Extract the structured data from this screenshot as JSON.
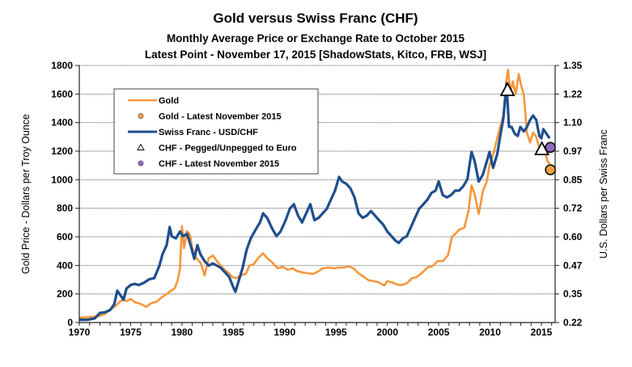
{
  "chart_data": {
    "type": "line",
    "title": "Gold versus Swiss Franc (CHF)",
    "subtitle_1": "Monthly Average Price or Exchange Rate to October 2015",
    "subtitle_2": "Latest Point - November 17, 2015 [ShadowStats, Kitco, FRB, WSJ]",
    "xlabel": "",
    "ylabel_left": "Gold Price - Dollars per Troy Ounce",
    "ylabel_right": "U.S. Dollars per Swiss Franc",
    "xlim": [
      1970,
      2016.3
    ],
    "ylim_left": [
      0,
      1800
    ],
    "ylim_right": [
      0.22,
      1.35
    ],
    "x_ticks": [
      "1970",
      "1975",
      "1980",
      "1985",
      "1990",
      "1995",
      "2000",
      "2005",
      "2010",
      "2015"
    ],
    "y_ticks_left": [
      "0",
      "200",
      "400",
      "600",
      "800",
      "1000",
      "1200",
      "1400",
      "1600",
      "1800"
    ],
    "y_ticks_right": [
      "0.22",
      "0.35",
      "0.47",
      "0.60",
      "0.72",
      "0.85",
      "0.97",
      "1.10",
      "1.22",
      "1.35"
    ],
    "grid": true,
    "legend_position": "top-left",
    "colors": {
      "gold": "#f7963b",
      "chf": "#1f4e8c",
      "gold_dot": "#f4a040",
      "chf_dot": "#8e6bbf",
      "grid": "#555555"
    },
    "legend": [
      {
        "label": "Gold",
        "kind": "line",
        "series": "gold"
      },
      {
        "label": "Gold - Latest November 2015",
        "kind": "dot",
        "series": "gold_dot"
      },
      {
        "label": "Swiss Franc - USD/CHF",
        "kind": "line",
        "series": "chf"
      },
      {
        "label": "CHF - Pegged/Unpegged to Euro",
        "kind": "triangle",
        "series": "peg"
      },
      {
        "label": "CHF - Latest November 2015",
        "kind": "dot",
        "series": "chf_dot"
      }
    ],
    "series": [
      {
        "name": "Gold",
        "axis": "left",
        "points": [
          [
            1970.0,
            35
          ],
          [
            1971.0,
            38
          ],
          [
            1971.8,
            42
          ],
          [
            1972.5,
            60
          ],
          [
            1973.0,
            90
          ],
          [
            1973.5,
            115
          ],
          [
            1974.0,
            150
          ],
          [
            1974.3,
            160
          ],
          [
            1974.6,
            150
          ],
          [
            1975.0,
            165
          ],
          [
            1975.5,
            140
          ],
          [
            1976.0,
            130
          ],
          [
            1976.5,
            110
          ],
          [
            1977.0,
            135
          ],
          [
            1977.5,
            145
          ],
          [
            1978.0,
            175
          ],
          [
            1978.5,
            200
          ],
          [
            1978.9,
            220
          ],
          [
            1979.3,
            240
          ],
          [
            1979.6,
            300
          ],
          [
            1979.8,
            380
          ],
          [
            1980.0,
            675
          ],
          [
            1980.2,
            520
          ],
          [
            1980.5,
            640
          ],
          [
            1980.8,
            610
          ],
          [
            1981.0,
            520
          ],
          [
            1981.4,
            450
          ],
          [
            1981.8,
            420
          ],
          [
            1982.2,
            330
          ],
          [
            1982.6,
            450
          ],
          [
            1983.0,
            470
          ],
          [
            1983.5,
            420
          ],
          [
            1984.0,
            380
          ],
          [
            1984.5,
            350
          ],
          [
            1984.9,
            320
          ],
          [
            1985.3,
            310
          ],
          [
            1985.7,
            330
          ],
          [
            1986.2,
            340
          ],
          [
            1986.6,
            400
          ],
          [
            1987.0,
            410
          ],
          [
            1987.4,
            450
          ],
          [
            1987.9,
            485
          ],
          [
            1988.3,
            450
          ],
          [
            1988.8,
            420
          ],
          [
            1989.3,
            380
          ],
          [
            1989.8,
            390
          ],
          [
            1990.3,
            370
          ],
          [
            1990.8,
            380
          ],
          [
            1991.2,
            360
          ],
          [
            1991.8,
            350
          ],
          [
            1992.3,
            345
          ],
          [
            1992.8,
            340
          ],
          [
            1993.3,
            360
          ],
          [
            1993.7,
            380
          ],
          [
            1994.3,
            385
          ],
          [
            1994.8,
            380
          ],
          [
            1995.3,
            385
          ],
          [
            1995.8,
            385
          ],
          [
            1996.2,
            395
          ],
          [
            1996.7,
            380
          ],
          [
            1997.2,
            345
          ],
          [
            1997.7,
            320
          ],
          [
            1998.2,
            295
          ],
          [
            1998.7,
            290
          ],
          [
            1999.2,
            280
          ],
          [
            1999.7,
            260
          ],
          [
            2000.0,
            290
          ],
          [
            2000.5,
            280
          ],
          [
            2001.0,
            265
          ],
          [
            2001.4,
            262
          ],
          [
            2001.9,
            275
          ],
          [
            2002.4,
            310
          ],
          [
            2002.9,
            320
          ],
          [
            2003.4,
            350
          ],
          [
            2003.9,
            385
          ],
          [
            2004.4,
            395
          ],
          [
            2004.9,
            430
          ],
          [
            2005.4,
            430
          ],
          [
            2005.9,
            470
          ],
          [
            2006.3,
            600
          ],
          [
            2006.6,
            620
          ],
          [
            2007.0,
            650
          ],
          [
            2007.5,
            665
          ],
          [
            2007.9,
            780
          ],
          [
            2008.2,
            960
          ],
          [
            2008.5,
            900
          ],
          [
            2008.9,
            760
          ],
          [
            2009.3,
            920
          ],
          [
            2009.7,
            990
          ],
          [
            2009.95,
            1100
          ],
          [
            2010.4,
            1200
          ],
          [
            2010.9,
            1350
          ],
          [
            2011.3,
            1450
          ],
          [
            2011.6,
            1700
          ],
          [
            2011.75,
            1770
          ],
          [
            2012.0,
            1600
          ],
          [
            2012.2,
            1690
          ],
          [
            2012.5,
            1600
          ],
          [
            2012.8,
            1740
          ],
          [
            2013.0,
            1670
          ],
          [
            2013.3,
            1590
          ],
          [
            2013.6,
            1330
          ],
          [
            2013.9,
            1260
          ],
          [
            2014.2,
            1330
          ],
          [
            2014.5,
            1300
          ],
          [
            2014.8,
            1220
          ],
          [
            2015.1,
            1250
          ],
          [
            2015.4,
            1190
          ],
          [
            2015.6,
            1130
          ],
          [
            2015.8,
            1110
          ]
        ]
      },
      {
        "name": "Swiss Franc - USD/CHF",
        "axis": "right",
        "points": [
          [
            1970.0,
            0.232
          ],
          [
            1970.8,
            0.232
          ],
          [
            1971.5,
            0.238
          ],
          [
            1972.0,
            0.262
          ],
          [
            1972.5,
            0.265
          ],
          [
            1973.0,
            0.275
          ],
          [
            1973.4,
            0.3
          ],
          [
            1973.7,
            0.36
          ],
          [
            1974.0,
            0.34
          ],
          [
            1974.3,
            0.32
          ],
          [
            1974.6,
            0.37
          ],
          [
            1975.0,
            0.385
          ],
          [
            1975.4,
            0.39
          ],
          [
            1975.8,
            0.385
          ],
          [
            1976.3,
            0.395
          ],
          [
            1976.8,
            0.41
          ],
          [
            1977.3,
            0.415
          ],
          [
            1977.8,
            0.47
          ],
          [
            1978.1,
            0.52
          ],
          [
            1978.5,
            0.56
          ],
          [
            1978.8,
            0.64
          ],
          [
            1979.0,
            0.6
          ],
          [
            1979.4,
            0.59
          ],
          [
            1979.8,
            0.62
          ],
          [
            1980.1,
            0.6
          ],
          [
            1980.5,
            0.61
          ],
          [
            1980.9,
            0.55
          ],
          [
            1981.2,
            0.5
          ],
          [
            1981.5,
            0.56
          ],
          [
            1981.8,
            0.52
          ],
          [
            1982.2,
            0.49
          ],
          [
            1982.6,
            0.47
          ],
          [
            1983.0,
            0.48
          ],
          [
            1983.4,
            0.47
          ],
          [
            1983.8,
            0.46
          ],
          [
            1984.2,
            0.44
          ],
          [
            1984.6,
            0.42
          ],
          [
            1985.0,
            0.375
          ],
          [
            1985.2,
            0.355
          ],
          [
            1985.5,
            0.4
          ],
          [
            1985.9,
            0.46
          ],
          [
            1986.3,
            0.54
          ],
          [
            1986.7,
            0.59
          ],
          [
            1987.2,
            0.63
          ],
          [
            1987.6,
            0.66
          ],
          [
            1987.9,
            0.7
          ],
          [
            1988.3,
            0.68
          ],
          [
            1988.7,
            0.64
          ],
          [
            1989.2,
            0.6
          ],
          [
            1989.6,
            0.62
          ],
          [
            1990.1,
            0.67
          ],
          [
            1990.5,
            0.72
          ],
          [
            1990.9,
            0.74
          ],
          [
            1991.3,
            0.69
          ],
          [
            1991.7,
            0.66
          ],
          [
            1992.1,
            0.7
          ],
          [
            1992.5,
            0.74
          ],
          [
            1992.9,
            0.67
          ],
          [
            1993.3,
            0.68
          ],
          [
            1993.7,
            0.7
          ],
          [
            1994.1,
            0.72
          ],
          [
            1994.5,
            0.76
          ],
          [
            1994.9,
            0.8
          ],
          [
            1995.3,
            0.86
          ],
          [
            1995.6,
            0.84
          ],
          [
            1996.0,
            0.83
          ],
          [
            1996.4,
            0.81
          ],
          [
            1996.8,
            0.77
          ],
          [
            1997.2,
            0.7
          ],
          [
            1997.6,
            0.68
          ],
          [
            1998.0,
            0.69
          ],
          [
            1998.4,
            0.71
          ],
          [
            1998.8,
            0.69
          ],
          [
            1999.2,
            0.67
          ],
          [
            1999.6,
            0.65
          ],
          [
            2000.0,
            0.62
          ],
          [
            2000.4,
            0.6
          ],
          [
            2000.8,
            0.58
          ],
          [
            2001.1,
            0.57
          ],
          [
            2001.5,
            0.59
          ],
          [
            2001.9,
            0.6
          ],
          [
            2002.3,
            0.64
          ],
          [
            2002.7,
            0.68
          ],
          [
            2003.1,
            0.72
          ],
          [
            2003.5,
            0.74
          ],
          [
            2003.9,
            0.76
          ],
          [
            2004.3,
            0.79
          ],
          [
            2004.7,
            0.8
          ],
          [
            2005.0,
            0.84
          ],
          [
            2005.4,
            0.78
          ],
          [
            2005.8,
            0.77
          ],
          [
            2006.2,
            0.78
          ],
          [
            2006.6,
            0.8
          ],
          [
            2007.0,
            0.8
          ],
          [
            2007.4,
            0.82
          ],
          [
            2007.8,
            0.85
          ],
          [
            2008.2,
            0.97
          ],
          [
            2008.5,
            0.93
          ],
          [
            2008.9,
            0.84
          ],
          [
            2009.3,
            0.87
          ],
          [
            2009.7,
            0.93
          ],
          [
            2009.95,
            0.97
          ],
          [
            2010.3,
            0.9
          ],
          [
            2010.7,
            0.96
          ],
          [
            2011.0,
            1.04
          ],
          [
            2011.3,
            1.12
          ],
          [
            2011.6,
            1.27
          ],
          [
            2011.85,
            1.08
          ],
          [
            2012.1,
            1.08
          ],
          [
            2012.4,
            1.05
          ],
          [
            2012.7,
            1.04
          ],
          [
            2012.95,
            1.08
          ],
          [
            2013.3,
            1.06
          ],
          [
            2013.6,
            1.08
          ],
          [
            2013.9,
            1.11
          ],
          [
            2014.2,
            1.13
          ],
          [
            2014.5,
            1.11
          ],
          [
            2014.8,
            1.04
          ],
          [
            2015.0,
            1.03
          ],
          [
            2015.2,
            1.07
          ],
          [
            2015.5,
            1.05
          ],
          [
            2015.8,
            1.03
          ]
        ]
      }
    ],
    "markers": [
      {
        "name": "CHF - Pegged/Unpegged to Euro",
        "shape": "triangle",
        "axis": "right",
        "x": 2011.7,
        "y": 1.24
      },
      {
        "name": "CHF - Pegged/Unpegged to Euro",
        "shape": "triangle",
        "axis": "right",
        "x": 2015.05,
        "y": 0.98
      },
      {
        "name": "Gold - Latest November 2015",
        "shape": "dot",
        "axis": "left",
        "x": 2015.88,
        "y": 1070
      },
      {
        "name": "CHF - Latest November 2015",
        "shape": "dot",
        "axis": "right",
        "x": 2015.88,
        "y": 0.99
      }
    ]
  }
}
